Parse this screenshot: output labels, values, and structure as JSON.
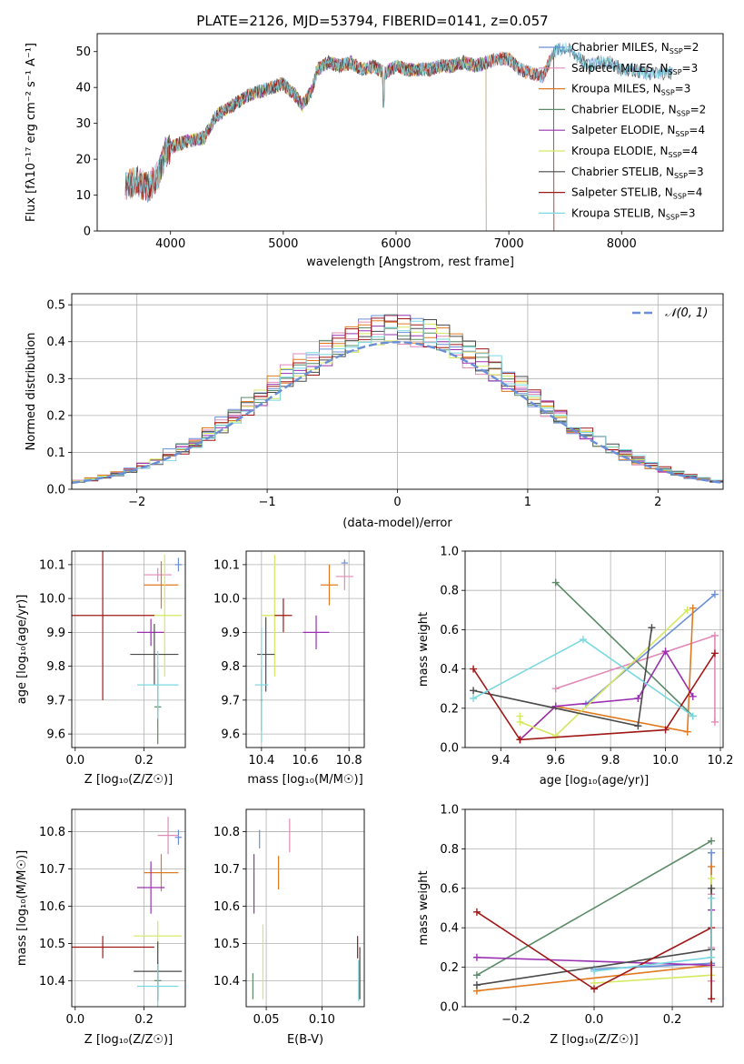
{
  "colors": {
    "Chabrier MILES": "#6b8fd6",
    "Salpeter MILES": "#e08ab8",
    "Kroupa MILES": "#e07a20",
    "Chabrier ELODIE": "#5a8a66",
    "Salpeter ELODIE": "#9a30b0",
    "Kroupa ELODIE": "#d4e860",
    "Chabrier STELIB": "#4a4a4a",
    "Salpeter STELIB": "#a01818",
    "Kroupa STELIB": "#7ad8e0",
    "normal_fit": "#6b8fd6"
  },
  "chart_data": [
    {
      "type": "line",
      "title": "PLATE=2126, MJD=53794, FIBERID=0141, z=0.057",
      "xlabel": "wavelength [Angstrom, rest frame]",
      "ylabel": "Flux [fλ10⁻¹⁷ erg cm⁻² s⁻¹ A⁻¹]",
      "xlim": [
        3350,
        8900
      ],
      "ylim": [
        0,
        55
      ],
      "xticks": [
        4000,
        5000,
        6000,
        7000,
        8000
      ],
      "yticks": [
        0,
        10,
        20,
        30,
        40,
        50
      ],
      "grid": false,
      "legend": "right",
      "spectrum_anchors": [
        [
          3580,
          12
        ],
        [
          3700,
          14
        ],
        [
          3800,
          12
        ],
        [
          3900,
          16
        ],
        [
          3950,
          22
        ],
        [
          4050,
          24
        ],
        [
          4150,
          25
        ],
        [
          4300,
          26
        ],
        [
          4400,
          32
        ],
        [
          4500,
          34
        ],
        [
          4600,
          36
        ],
        [
          4700,
          38
        ],
        [
          4800,
          39
        ],
        [
          4900,
          40
        ],
        [
          5000,
          41
        ],
        [
          5100,
          38
        ],
        [
          5170,
          35
        ],
        [
          5250,
          39
        ],
        [
          5300,
          45
        ],
        [
          5400,
          47
        ],
        [
          5500,
          46
        ],
        [
          5600,
          47
        ],
        [
          5700,
          45
        ],
        [
          5800,
          46
        ],
        [
          5900,
          44
        ],
        [
          6000,
          46
        ],
        [
          6100,
          45
        ],
        [
          6200,
          45
        ],
        [
          6300,
          45
        ],
        [
          6400,
          46
        ],
        [
          6500,
          46
        ],
        [
          6600,
          47
        ],
        [
          6700,
          46
        ],
        [
          6800,
          47
        ],
        [
          6900,
          48
        ],
        [
          7000,
          48
        ],
        [
          7100,
          45
        ],
        [
          7200,
          44
        ],
        [
          7300,
          43
        ],
        [
          7400,
          50
        ],
        [
          7500,
          51
        ],
        [
          7600,
          49
        ],
        [
          7700,
          46
        ],
        [
          7800,
          47
        ],
        [
          7900,
          47
        ],
        [
          8000,
          45
        ],
        [
          8100,
          45
        ],
        [
          8200,
          44
        ],
        [
          8300,
          44
        ],
        [
          8400,
          44
        ],
        [
          8500,
          44
        ],
        [
          8600,
          43
        ]
      ],
      "series": [
        {
          "name": "Chabrier MILES",
          "nssp": "2",
          "start": 3600,
          "end": 8450
        },
        {
          "name": "Salpeter MILES",
          "nssp": "3",
          "start": 3600,
          "end": 7400
        },
        {
          "name": "Kroupa MILES",
          "nssp": "3",
          "start": 3600,
          "end": 7400
        },
        {
          "name": "Chabrier ELODIE",
          "nssp": "2",
          "start": 3900,
          "end": 6800
        },
        {
          "name": "Salpeter ELODIE",
          "nssp": "4",
          "start": 3900,
          "end": 6800
        },
        {
          "name": "Kroupa ELODIE",
          "nssp": "4",
          "start": 3900,
          "end": 6800
        },
        {
          "name": "Chabrier STELIB",
          "nssp": "3",
          "start": 3600,
          "end": 8450
        },
        {
          "name": "Salpeter STELIB",
          "nssp": "4",
          "start": 3600,
          "end": 7400
        },
        {
          "name": "Kroupa STELIB",
          "nssp": "3",
          "start": 3600,
          "end": 8450
        }
      ]
    },
    {
      "type": "histogram",
      "xlabel": "(data-model)/error",
      "ylabel": "Normed distribution",
      "xlim": [
        -2.5,
        2.5
      ],
      "ylim": [
        0,
        0.53
      ],
      "xticks": [
        -2,
        -1,
        0,
        1,
        2
      ],
      "yticks": [
        0.0,
        0.1,
        0.2,
        0.3,
        0.4,
        0.5
      ],
      "grid": true,
      "legend": "top-right",
      "fit_label": "𝒩(0, 1)"
    },
    {
      "type": "errorbar",
      "xlabel": "Z [log₁₀(Z/Z☉)]",
      "ylabel": "age  [log₁₀(age/yr)]",
      "xlim": [
        -0.01,
        0.32
      ],
      "ylim": [
        9.56,
        10.14
      ],
      "xticks": [
        0.0,
        0.2
      ],
      "yticks": [
        9.6,
        9.7,
        9.8,
        9.9,
        10.0,
        10.1
      ],
      "grid": true,
      "points": [
        {
          "series": "Chabrier MILES",
          "x": 0.3,
          "y": 10.1,
          "xerr": 0.01,
          "yerr": 0.02
        },
        {
          "series": "Salpeter MILES",
          "x": 0.24,
          "y": 10.07,
          "xerr": 0.04,
          "yerr": 0.02
        },
        {
          "series": "Kroupa MILES",
          "x": 0.25,
          "y": 10.04,
          "xerr": 0.05,
          "yerr": 0.07
        },
        {
          "series": "Chabrier ELODIE",
          "x": 0.24,
          "y": 9.68,
          "xerr": 0.01,
          "yerr": 0.11
        },
        {
          "series": "Salpeter ELODIE",
          "x": 0.22,
          "y": 9.9,
          "xerr": 0.04,
          "yerr": 0.04
        },
        {
          "series": "Kroupa ELODIE",
          "x": 0.26,
          "y": 9.95,
          "xerr": 0.05,
          "yerr": 0.18
        },
        {
          "series": "Chabrier STELIB",
          "x": 0.23,
          "y": 9.835,
          "xerr": 0.07,
          "yerr": 0.09
        },
        {
          "series": "Salpeter STELIB",
          "x": 0.08,
          "y": 9.95,
          "xerr": 0.15,
          "yerr": 0.25
        },
        {
          "series": "Kroupa STELIB",
          "x": 0.24,
          "y": 9.745,
          "xerr": 0.06,
          "yerr": 0.1
        }
      ]
    },
    {
      "type": "errorbar",
      "xlabel": "mass [log₁₀(M/M☉)]",
      "ylabel": "",
      "xlim": [
        10.33,
        10.87
      ],
      "ylim": [
        9.56,
        10.14
      ],
      "xticks": [
        10.4,
        10.6,
        10.8
      ],
      "yticks": [
        9.6,
        9.7,
        9.8,
        9.9,
        10.0,
        10.1
      ],
      "grid": true,
      "points": [
        {
          "series": "Chabrier MILES",
          "x": 10.78,
          "y": 10.105,
          "xerr": 0.015,
          "yerr": 0.01
        },
        {
          "series": "Salpeter MILES",
          "x": 10.78,
          "y": 10.065,
          "xerr": 0.04,
          "yerr": 0.04
        },
        {
          "series": "Kroupa MILES",
          "x": 10.71,
          "y": 10.04,
          "xerr": 0.04,
          "yerr": 0.06
        },
        {
          "series": "Chabrier ELODIE",
          "x": 10.4,
          "y": 9.7,
          "xerr": 0.005,
          "yerr": 0.09
        },
        {
          "series": "Salpeter ELODIE",
          "x": 10.65,
          "y": 9.9,
          "xerr": 0.06,
          "yerr": 0.05
        },
        {
          "series": "Kroupa ELODIE",
          "x": 10.46,
          "y": 9.95,
          "xerr": 0.06,
          "yerr": 0.18
        },
        {
          "series": "Chabrier STELIB",
          "x": 10.42,
          "y": 9.835,
          "xerr": 0.04,
          "yerr": 0.11
        },
        {
          "series": "Salpeter STELIB",
          "x": 10.5,
          "y": 9.95,
          "xerr": 0.04,
          "yerr": 0.05
        },
        {
          "series": "Kroupa STELIB",
          "x": 10.4,
          "y": 9.745,
          "xerr": 0.03,
          "yerr": 0.17
        }
      ]
    },
    {
      "type": "line",
      "xlabel": "age  [log₁₀(age/yr)]",
      "ylabel": "mass weight",
      "xlim": [
        9.27,
        10.21
      ],
      "ylim": [
        0,
        1
      ],
      "xticks": [
        9.4,
        9.6,
        9.8,
        10.0,
        10.2
      ],
      "yticks": [
        0.0,
        0.2,
        0.4,
        0.6,
        0.8,
        1.0
      ],
      "grid": true,
      "series": [
        {
          "name": "Chabrier MILES",
          "points": [
            [
              9.71,
              0.22
            ],
            [
              10.18,
              0.78
            ]
          ]
        },
        {
          "name": "Salpeter MILES",
          "points": [
            [
              9.6,
              0.3
            ],
            [
              10.18,
              0.57
            ],
            [
              10.18,
              0.13
            ]
          ]
        },
        {
          "name": "Kroupa MILES",
          "points": [
            [
              9.47,
              0.04
            ],
            [
              9.6,
              0.21
            ],
            [
              10.08,
              0.08
            ],
            [
              10.1,
              0.71
            ]
          ]
        },
        {
          "name": "Chabrier ELODIE",
          "points": [
            [
              9.6,
              0.84
            ],
            [
              10.1,
              0.16
            ]
          ]
        },
        {
          "name": "Salpeter ELODIE",
          "points": [
            [
              9.47,
              0.04
            ],
            [
              9.6,
              0.21
            ],
            [
              9.9,
              0.25
            ],
            [
              10.0,
              0.49
            ],
            [
              10.1,
              0.26
            ]
          ]
        },
        {
          "name": "Kroupa ELODIE",
          "points": [
            [
              9.47,
              0.16
            ],
            [
              9.47,
              0.13
            ],
            [
              9.6,
              0.06
            ],
            [
              10.08,
              0.7
            ]
          ]
        },
        {
          "name": "Chabrier STELIB",
          "points": [
            [
              9.3,
              0.29
            ],
            [
              9.9,
              0.11
            ],
            [
              9.95,
              0.61
            ]
          ]
        },
        {
          "name": "Salpeter STELIB",
          "points": [
            [
              9.3,
              0.4
            ],
            [
              9.47,
              0.04
            ],
            [
              10.0,
              0.09
            ],
            [
              10.18,
              0.48
            ]
          ]
        },
        {
          "name": "Kroupa STELIB",
          "points": [
            [
              9.3,
              0.25
            ],
            [
              9.7,
              0.55
            ],
            [
              10.1,
              0.16
            ]
          ]
        }
      ]
    },
    {
      "type": "errorbar",
      "xlabel": "Z [log₁₀(Z/Z☉)]",
      "ylabel": "mass [log₁₀(M/M☉)]",
      "xlim": [
        -0.01,
        0.32
      ],
      "ylim": [
        10.33,
        10.86
      ],
      "xticks": [
        0.0,
        0.2
      ],
      "yticks": [
        10.4,
        10.5,
        10.6,
        10.7,
        10.8
      ],
      "grid": true,
      "points": [
        {
          "series": "Chabrier MILES",
          "x": 0.3,
          "y": 10.785,
          "xerr": 0.01,
          "yerr": 0.02
        },
        {
          "series": "Salpeter MILES",
          "x": 0.27,
          "y": 10.79,
          "xerr": 0.03,
          "yerr": 0.05
        },
        {
          "series": "Kroupa MILES",
          "x": 0.25,
          "y": 10.69,
          "xerr": 0.05,
          "yerr": 0.05
        },
        {
          "series": "Chabrier ELODIE",
          "x": 0.24,
          "y": 10.4,
          "xerr": 0.01,
          "yerr": 0.05
        },
        {
          "series": "Salpeter ELODIE",
          "x": 0.22,
          "y": 10.65,
          "xerr": 0.04,
          "yerr": 0.07
        },
        {
          "series": "Kroupa ELODIE",
          "x": 0.24,
          "y": 10.52,
          "xerr": 0.07,
          "yerr": 0.04
        },
        {
          "series": "Chabrier STELIB",
          "x": 0.24,
          "y": 10.425,
          "xerr": 0.07,
          "yerr": 0.08
        },
        {
          "series": "Salpeter STELIB",
          "x": 0.08,
          "y": 10.49,
          "xerr": 0.15,
          "yerr": 0.03
        },
        {
          "series": "Kroupa STELIB",
          "x": 0.24,
          "y": 10.385,
          "xerr": 0.06,
          "yerr": 0.06
        }
      ]
    },
    {
      "type": "errorbar",
      "xlabel": "E(B-V)",
      "ylabel": "",
      "xlim": [
        0.032,
        0.138
      ],
      "ylim": [
        10.33,
        10.86
      ],
      "xticks": [
        0.05,
        0.1
      ],
      "yticks": [
        10.4,
        10.5,
        10.6,
        10.7,
        10.8
      ],
      "grid": true,
      "points": [
        {
          "series": "Chabrier MILES",
          "x": 0.044,
          "y": 10.78,
          "xerr": 0,
          "yerr": 0.025
        },
        {
          "series": "Salpeter MILES",
          "x": 0.071,
          "y": 10.79,
          "xerr": 0,
          "yerr": 0.045
        },
        {
          "series": "Kroupa MILES",
          "x": 0.061,
          "y": 10.69,
          "xerr": 0,
          "yerr": 0.045
        },
        {
          "series": "Chabrier ELODIE",
          "x": 0.038,
          "y": 10.385,
          "xerr": 0,
          "yerr": 0.035
        },
        {
          "series": "Salpeter ELODIE",
          "x": 0.039,
          "y": 10.66,
          "xerr": 0,
          "yerr": 0.08
        },
        {
          "series": "Kroupa ELODIE",
          "x": 0.047,
          "y": 10.45,
          "xerr": 0,
          "yerr": 0.1
        },
        {
          "series": "Chabrier STELIB",
          "x": 0.134,
          "y": 10.42,
          "xerr": 0,
          "yerr": 0.07
        },
        {
          "series": "Salpeter STELIB",
          "x": 0.132,
          "y": 10.49,
          "xerr": 0,
          "yerr": 0.03
        },
        {
          "series": "Kroupa STELIB",
          "x": 0.133,
          "y": 10.4,
          "xerr": 0,
          "yerr": 0.055
        }
      ]
    },
    {
      "type": "line",
      "xlabel": "Z [log₁₀(Z/Z☉)]",
      "ylabel": "mass weight",
      "xlim": [
        -0.33,
        0.33
      ],
      "ylim": [
        0,
        1
      ],
      "xticks": [
        -0.2,
        0.0,
        0.2
      ],
      "yticks": [
        0.0,
        0.2,
        0.4,
        0.6,
        0.8,
        1.0
      ],
      "grid": true,
      "series": [
        {
          "name": "Chabrier MILES",
          "points": [
            [
              0.0,
              0.19
            ],
            [
              0.3,
              0.22
            ],
            [
              0.3,
              0.78
            ]
          ]
        },
        {
          "name": "Salpeter MILES",
          "points": [
            [
              0.3,
              0.57
            ],
            [
              0.3,
              0.3
            ],
            [
              0.3,
              0.13
            ]
          ]
        },
        {
          "name": "Kroupa MILES",
          "points": [
            [
              -0.3,
              0.08
            ],
            [
              0.3,
              0.21
            ],
            [
              0.3,
              0.71
            ]
          ]
        },
        {
          "name": "Chabrier ELODIE",
          "points": [
            [
              -0.3,
              0.16
            ],
            [
              0.3,
              0.84
            ]
          ]
        },
        {
          "name": "Salpeter ELODIE",
          "points": [
            [
              -0.3,
              0.25
            ],
            [
              0.3,
              0.21
            ],
            [
              0.3,
              0.49
            ]
          ]
        },
        {
          "name": "Kroupa ELODIE",
          "points": [
            [
              0.0,
              0.12
            ],
            [
              0.3,
              0.16
            ],
            [
              0.3,
              0.65
            ]
          ]
        },
        {
          "name": "Chabrier STELIB",
          "points": [
            [
              -0.3,
              0.11
            ],
            [
              0.3,
              0.29
            ],
            [
              0.3,
              0.6
            ]
          ]
        },
        {
          "name": "Salpeter STELIB",
          "points": [
            [
              -0.3,
              0.48
            ],
            [
              0.0,
              0.09
            ],
            [
              0.3,
              0.4
            ],
            [
              0.3,
              0.04
            ]
          ]
        },
        {
          "name": "Kroupa STELIB",
          "points": [
            [
              0.0,
              0.18
            ],
            [
              0.3,
              0.25
            ],
            [
              0.3,
              0.55
            ]
          ]
        }
      ]
    }
  ]
}
